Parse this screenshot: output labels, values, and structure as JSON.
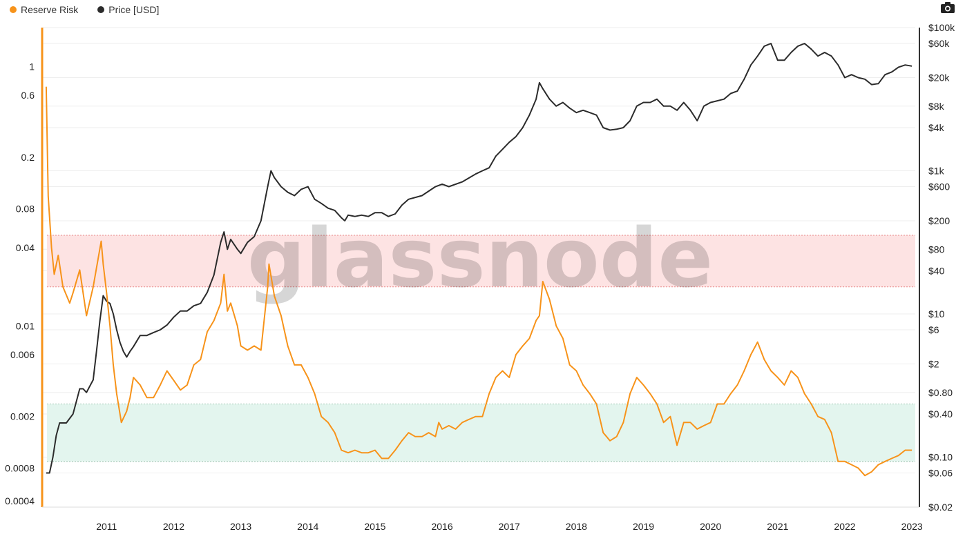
{
  "legend": {
    "series_a": "Reserve Risk",
    "series_b": "Price [USD]"
  },
  "watermark": "glassnode",
  "icons": {
    "toolbar": "camera-icon"
  },
  "colors": {
    "reserve_risk": "#f7931a",
    "price": "#2b2b2b",
    "high_band": "#fde3e3",
    "high_band_line": "#e88a8a",
    "low_band": "#e3f5ee",
    "low_band_line": "#9fc4b0",
    "grid": "#eeeeee"
  },
  "chart_data": {
    "type": "line",
    "title": "",
    "xlabel": "",
    "x_ticks": [
      "2011",
      "2012",
      "2013",
      "2014",
      "2015",
      "2016",
      "2017",
      "2018",
      "2019",
      "2020",
      "2021",
      "2022",
      "2023"
    ],
    "x_range": [
      2010.55,
      2023.55
    ],
    "y_left": {
      "scale": "log",
      "range": [
        0.0004,
        2
      ],
      "tick_values": [
        1,
        0.6,
        0.2,
        0.08,
        0.04,
        0.01,
        0.006,
        0.002,
        0.0008,
        0.0004
      ],
      "tick_labels": [
        "1",
        "0.6",
        "0.2",
        "0.08",
        "0.04",
        "0.01",
        "0.006",
        "0.002",
        "0.0008",
        "0.0004"
      ]
    },
    "y_right": {
      "scale": "log",
      "range": [
        0.02,
        100000
      ],
      "tick_values": [
        100000,
        60000,
        20000,
        8000,
        4000,
        1000,
        600,
        200,
        80,
        40,
        10,
        6,
        2,
        0.8,
        0.4,
        0.1,
        0.06,
        0.02
      ],
      "tick_labels": [
        "$100k",
        "$60k",
        "$20k",
        "$8k",
        "$4k",
        "$1k",
        "$600",
        "$200",
        "$80",
        "$40",
        "$10",
        "$6",
        "$2",
        "$0.80",
        "$0.40",
        "$0.10",
        "$0.06",
        "$0.02"
      ]
    },
    "bands": [
      {
        "name": "high",
        "axis": "left",
        "from": 0.02,
        "to": 0.05
      },
      {
        "name": "low",
        "axis": "left",
        "from": 0.0009,
        "to": 0.0025
      }
    ],
    "series": [
      {
        "name": "Reserve Risk",
        "axis": "left",
        "x": [
          2010.6,
          2010.63,
          2010.68,
          2010.72,
          2010.78,
          2010.85,
          2010.95,
          2011.0,
          2011.1,
          2011.2,
          2011.3,
          2011.35,
          2011.42,
          2011.45,
          2011.5,
          2011.55,
          2011.6,
          2011.65,
          2011.72,
          2011.8,
          2011.85,
          2011.9,
          2012.0,
          2012.1,
          2012.2,
          2012.3,
          2012.4,
          2012.5,
          2012.6,
          2012.7,
          2012.8,
          2012.9,
          2013.0,
          2013.1,
          2013.2,
          2013.25,
          2013.3,
          2013.35,
          2013.45,
          2013.5,
          2013.6,
          2013.7,
          2013.8,
          2013.9,
          2013.92,
          2014.0,
          2014.1,
          2014.2,
          2014.3,
          2014.4,
          2014.5,
          2014.6,
          2014.7,
          2014.8,
          2014.9,
          2015.0,
          2015.1,
          2015.2,
          2015.3,
          2015.4,
          2015.5,
          2015.6,
          2015.7,
          2015.8,
          2015.9,
          2016.0,
          2016.1,
          2016.2,
          2016.3,
          2016.4,
          2016.45,
          2016.5,
          2016.6,
          2016.7,
          2016.8,
          2016.9,
          2017.0,
          2017.1,
          2017.2,
          2017.3,
          2017.4,
          2017.5,
          2017.6,
          2017.7,
          2017.8,
          2017.9,
          2017.95,
          2018.0,
          2018.1,
          2018.2,
          2018.3,
          2018.4,
          2018.5,
          2018.6,
          2018.7,
          2018.8,
          2018.9,
          2018.95,
          2019.0,
          2019.1,
          2019.2,
          2019.3,
          2019.4,
          2019.5,
          2019.6,
          2019.7,
          2019.8,
          2019.9,
          2020.0,
          2020.1,
          2020.2,
          2020.3,
          2020.4,
          2020.5,
          2020.6,
          2020.7,
          2020.8,
          2020.9,
          2021.0,
          2021.1,
          2021.2,
          2021.3,
          2021.4,
          2021.5,
          2021.6,
          2021.7,
          2021.8,
          2021.9,
          2022.0,
          2022.1,
          2022.2,
          2022.3,
          2022.4,
          2022.5,
          2022.6,
          2022.7,
          2022.8,
          2022.9,
          2023.0,
          2023.1,
          2023.2,
          2023.3,
          2023.4,
          2023.5
        ],
        "y": [
          0.7,
          0.1,
          0.04,
          0.025,
          0.035,
          0.02,
          0.015,
          0.018,
          0.027,
          0.012,
          0.02,
          0.028,
          0.045,
          0.03,
          0.018,
          0.01,
          0.005,
          0.003,
          0.0018,
          0.0022,
          0.0028,
          0.004,
          0.0035,
          0.0028,
          0.0028,
          0.0035,
          0.0045,
          0.0038,
          0.0032,
          0.0035,
          0.005,
          0.0055,
          0.009,
          0.011,
          0.015,
          0.025,
          0.013,
          0.015,
          0.01,
          0.007,
          0.0065,
          0.007,
          0.0065,
          0.02,
          0.03,
          0.017,
          0.012,
          0.007,
          0.005,
          0.005,
          0.004,
          0.003,
          0.002,
          0.0018,
          0.0015,
          0.0011,
          0.00105,
          0.0011,
          0.00105,
          0.00105,
          0.0011,
          0.00095,
          0.00095,
          0.0011,
          0.0013,
          0.0015,
          0.0014,
          0.0014,
          0.0015,
          0.0014,
          0.0018,
          0.0016,
          0.0017,
          0.0016,
          0.0018,
          0.0019,
          0.002,
          0.002,
          0.003,
          0.004,
          0.0045,
          0.004,
          0.006,
          0.007,
          0.008,
          0.011,
          0.012,
          0.022,
          0.016,
          0.01,
          0.008,
          0.005,
          0.0045,
          0.0035,
          0.003,
          0.0025,
          0.0015,
          0.0014,
          0.0013,
          0.0014,
          0.0018,
          0.003,
          0.004,
          0.0035,
          0.003,
          0.0025,
          0.0018,
          0.002,
          0.0012,
          0.0018,
          0.0018,
          0.0016,
          0.0017,
          0.0018,
          0.0025,
          0.0025,
          0.003,
          0.0035,
          0.0045,
          0.006,
          0.0075,
          0.0055,
          0.0045,
          0.004,
          0.0035,
          0.0045,
          0.004,
          0.003,
          0.0025,
          0.002,
          0.0019,
          0.0015,
          0.0009,
          0.0009,
          0.00085,
          0.0008,
          0.0007,
          0.00075,
          0.00085,
          0.0009,
          0.00095,
          0.001,
          0.0011,
          0.0011
        ]
      },
      {
        "name": "Price [USD]",
        "axis": "right",
        "x": [
          2010.6,
          2010.65,
          2010.7,
          2010.75,
          2010.8,
          2010.9,
          2011.0,
          2011.05,
          2011.1,
          2011.15,
          2011.2,
          2011.3,
          2011.35,
          2011.4,
          2011.45,
          2011.5,
          2011.55,
          2011.6,
          2011.65,
          2011.7,
          2011.75,
          2011.8,
          2011.85,
          2011.9,
          2012.0,
          2012.1,
          2012.2,
          2012.3,
          2012.4,
          2012.5,
          2012.6,
          2012.7,
          2012.8,
          2012.9,
          2013.0,
          2013.1,
          2013.2,
          2013.25,
          2013.3,
          2013.35,
          2013.45,
          2013.5,
          2013.6,
          2013.7,
          2013.8,
          2013.9,
          2013.95,
          2014.0,
          2014.1,
          2014.2,
          2014.3,
          2014.4,
          2014.5,
          2014.6,
          2014.7,
          2014.8,
          2014.9,
          2015.0,
          2015.05,
          2015.1,
          2015.2,
          2015.3,
          2015.4,
          2015.5,
          2015.6,
          2015.7,
          2015.8,
          2015.9,
          2016.0,
          2016.2,
          2016.4,
          2016.5,
          2016.6,
          2016.8,
          2017.0,
          2017.1,
          2017.2,
          2017.3,
          2017.4,
          2017.5,
          2017.6,
          2017.7,
          2017.8,
          2017.9,
          2017.95,
          2018.0,
          2018.1,
          2018.2,
          2018.3,
          2018.4,
          2018.5,
          2018.6,
          2018.7,
          2018.8,
          2018.9,
          2019.0,
          2019.1,
          2019.2,
          2019.3,
          2019.4,
          2019.5,
          2019.6,
          2019.7,
          2019.8,
          2019.9,
          2020.0,
          2020.1,
          2020.2,
          2020.3,
          2020.4,
          2020.5,
          2020.6,
          2020.7,
          2020.8,
          2020.9,
          2021.0,
          2021.1,
          2021.2,
          2021.3,
          2021.4,
          2021.5,
          2021.6,
          2021.7,
          2021.8,
          2021.9,
          2022.0,
          2022.1,
          2022.2,
          2022.3,
          2022.4,
          2022.5,
          2022.6,
          2022.7,
          2022.8,
          2022.9,
          2023.0,
          2023.1,
          2023.2,
          2023.3,
          2023.4,
          2023.5
        ],
        "y": [
          0.06,
          0.06,
          0.1,
          0.2,
          0.3,
          0.3,
          0.4,
          0.6,
          0.9,
          0.9,
          0.8,
          1.2,
          3,
          8,
          18,
          15,
          14,
          10,
          6,
          4,
          3,
          2.5,
          3,
          3.5,
          5,
          5,
          5.5,
          6,
          7,
          9,
          11,
          11,
          13,
          14,
          20,
          35,
          100,
          140,
          80,
          110,
          80,
          70,
          100,
          120,
          200,
          600,
          1000,
          800,
          600,
          500,
          450,
          550,
          600,
          400,
          350,
          300,
          280,
          220,
          200,
          240,
          230,
          240,
          230,
          260,
          260,
          230,
          250,
          330,
          400,
          450,
          600,
          650,
          600,
          700,
          900,
          1000,
          1100,
          1600,
          2000,
          2500,
          3000,
          4000,
          6000,
          10000,
          17000,
          14000,
          10000,
          8000,
          9000,
          7500,
          6500,
          7000,
          6500,
          6000,
          4000,
          3700,
          3800,
          4000,
          5000,
          8000,
          9000,
          9000,
          10000,
          8000,
          8000,
          7000,
          9000,
          7000,
          5000,
          8000,
          9000,
          9500,
          10000,
          12000,
          13000,
          19000,
          30000,
          40000,
          55000,
          60000,
          35000,
          35000,
          45000,
          55000,
          60000,
          50000,
          40000,
          45000,
          40000,
          30000,
          20000,
          22000,
          20000,
          19000,
          16000,
          16500,
          22000,
          24000,
          28000,
          30000,
          29000
        ]
      }
    ]
  }
}
